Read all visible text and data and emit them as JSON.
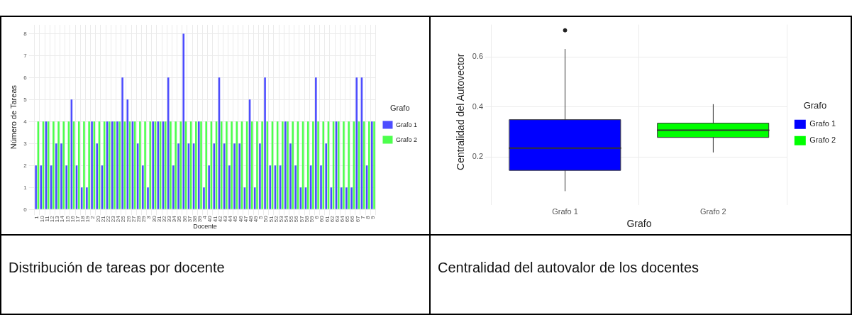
{
  "chart_data": [
    {
      "type": "bar",
      "title": "Distribución de tareas por docente",
      "xlabel": "Docente",
      "ylabel": "Número de Tareas",
      "legend_title": "Grafo",
      "categories": [
        "1",
        "10",
        "11",
        "12",
        "13",
        "14",
        "15",
        "16",
        "17",
        "18",
        "19",
        "2",
        "20",
        "21",
        "22",
        "23",
        "24",
        "25",
        "26",
        "27",
        "28",
        "29",
        "3",
        "30",
        "31",
        "32",
        "33",
        "34",
        "35",
        "36",
        "37",
        "38",
        "39",
        "4",
        "40",
        "41",
        "42",
        "43",
        "44",
        "45",
        "46",
        "47",
        "48",
        "49",
        "5",
        "50",
        "51",
        "52",
        "53",
        "54",
        "55",
        "56",
        "57",
        "58",
        "59",
        "6",
        "60",
        "61",
        "62",
        "63",
        "64",
        "65",
        "66",
        "67",
        "7",
        "8",
        "9"
      ],
      "series": [
        {
          "name": "Grafo 1",
          "color": "#4d4dff",
          "values": [
            2,
            2,
            4,
            2,
            3,
            3,
            2,
            5,
            2,
            1,
            1,
            4,
            3,
            2,
            4,
            4,
            4,
            6,
            5,
            4,
            3,
            2,
            1,
            4,
            4,
            4,
            6,
            2,
            3,
            8,
            3,
            3,
            4,
            1,
            2,
            3,
            6,
            3,
            2,
            3,
            3,
            1,
            5,
            1,
            3,
            6,
            2,
            2,
            2,
            4,
            3,
            2,
            1,
            1,
            2,
            6,
            2,
            3,
            1,
            4,
            1,
            1,
            1,
            6,
            6,
            2,
            4
          ]
        },
        {
          "name": "Grafo 2",
          "color": "#4dff4d",
          "values": [
            4,
            4,
            4,
            4,
            4,
            4,
            4,
            4,
            4,
            4,
            4,
            4,
            4,
            4,
            4,
            4,
            4,
            4,
            4,
            4,
            4,
            4,
            4,
            4,
            4,
            4,
            4,
            4,
            4,
            4,
            4,
            4,
            4,
            4,
            4,
            4,
            4,
            4,
            4,
            4,
            4,
            4,
            4,
            4,
            4,
            4,
            4,
            4,
            4,
            4,
            4,
            4,
            4,
            4,
            4,
            4,
            4,
            4,
            4,
            4,
            4,
            4,
            4,
            4,
            4,
            4,
            4
          ]
        }
      ],
      "ylim": [
        0,
        8.4
      ],
      "yticks": [
        0,
        1,
        2,
        3,
        4,
        5,
        6,
        7,
        8
      ],
      "grid": true,
      "legend": "right"
    },
    {
      "type": "box",
      "title": "Centralidad del autovalor de los docentes",
      "xlabel": "Grafo",
      "ylabel": "Centralidad del Autovector",
      "legend_title": "Grafo",
      "categories": [
        "Grafo 1",
        "Grafo 2"
      ],
      "series": [
        {
          "name": "Grafo 1",
          "color": "#0000ff",
          "boxes": [
            {
              "low": 0.064,
              "q1": 0.146,
              "median": 0.235,
              "q3": 0.349,
              "high": 0.631,
              "outliers": [
                0.707
              ]
            },
            null
          ]
        },
        {
          "name": "Grafo 2",
          "color": "#00ff00",
          "boxes": [
            null,
            {
              "low": 0.219,
              "q1": 0.278,
              "median": 0.307,
              "q3": 0.335,
              "high": 0.41
            }
          ]
        }
      ],
      "ylim": [
        0.03,
        0.73
      ],
      "yticks": [
        0.2,
        0.4,
        0.6
      ],
      "grid": true,
      "legend": "right"
    }
  ]
}
